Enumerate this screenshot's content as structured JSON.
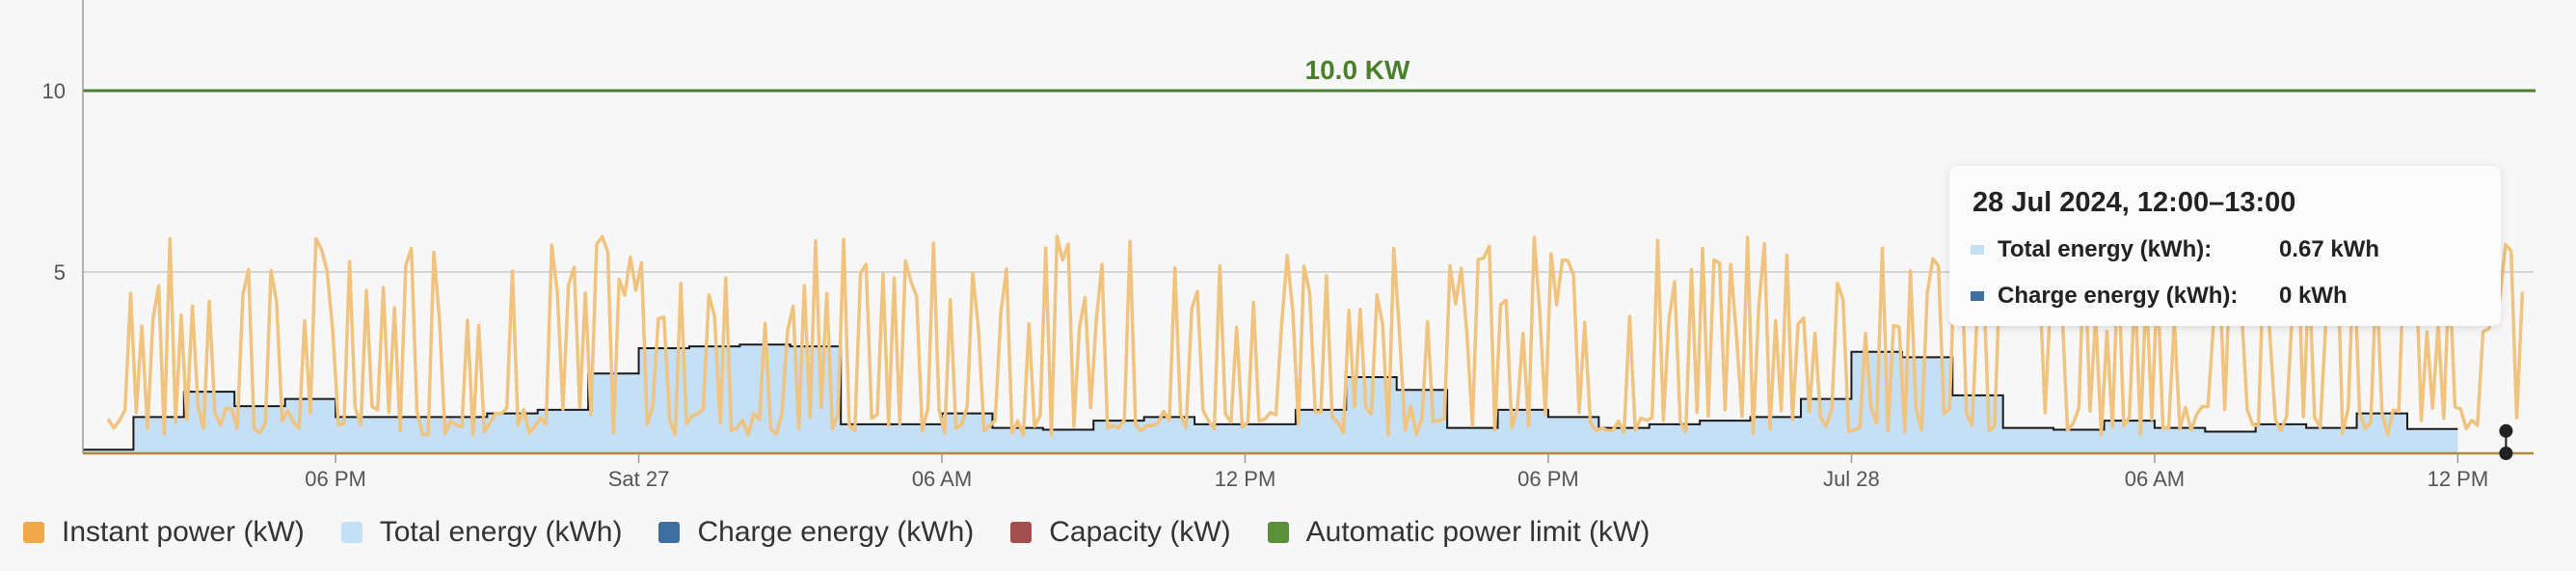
{
  "chart_data": {
    "type": "line",
    "y_axis": {
      "range": [
        0,
        12.5
      ],
      "ticks": [
        5,
        10
      ]
    },
    "x_axis": {
      "range": [
        "2024-07-26T13:00",
        "2024-07-28T13:30"
      ],
      "ticks": [
        {
          "t": "2024-07-26T18:00",
          "label": "06 PM"
        },
        {
          "t": "2024-07-27T00:00",
          "label": "Sat 27"
        },
        {
          "t": "2024-07-27T06:00",
          "label": "06 AM"
        },
        {
          "t": "2024-07-27T12:00",
          "label": "12 PM"
        },
        {
          "t": "2024-07-27T18:00",
          "label": "06 PM"
        },
        {
          "t": "2024-07-28T00:00",
          "label": "Jul 28"
        },
        {
          "t": "2024-07-28T06:00",
          "label": "06 AM"
        },
        {
          "t": "2024-07-28T12:00",
          "label": "12 PM"
        }
      ]
    },
    "grid": "horizontal",
    "power_limit": {
      "value": 10.0,
      "label": "10.0 KW",
      "color": "#4b7f2c"
    },
    "series": [
      {
        "name": "Total energy (kWh)",
        "type": "step-area",
        "color": "#c5dff5",
        "start": "2024-07-26T13:00",
        "step_hours": 1,
        "values": [
          0.1,
          1.0,
          1.7,
          1.3,
          1.5,
          1.0,
          1.0,
          1.0,
          1.1,
          1.2,
          2.2,
          2.9,
          2.95,
          3.0,
          2.95,
          0.8,
          0.8,
          1.1,
          0.7,
          0.65,
          0.9,
          1.0,
          0.8,
          0.8,
          1.2,
          2.1,
          1.75,
          0.7,
          1.2,
          1.0,
          0.7,
          0.8,
          0.9,
          1.0,
          1.5,
          2.8,
          2.65,
          1.6,
          0.7,
          0.65,
          0.9,
          0.7,
          0.6,
          0.8,
          0.7,
          1.1,
          0.67
        ]
      },
      {
        "name": "Instant power (kW)",
        "type": "line",
        "color": "#f0c37f",
        "start": "2024-07-26T13:30",
        "oscillation": {
          "low": 0.5,
          "high": 6.0
        },
        "note": "dense sawtooth between low and high throughout the range"
      },
      {
        "name": "Charge energy (kWh)",
        "color": "#3e6fa0",
        "values": [
          0
        ]
      },
      {
        "name": "Capacity (kW)",
        "color": "#a34e4e"
      },
      {
        "name": "Automatic power limit (kW)",
        "color": "#5b8f3a",
        "value": 10.0
      }
    ]
  },
  "tooltip": {
    "title": "28 Jul 2024, 12:00–13:00",
    "rows": [
      {
        "label": "Total energy (kWh):",
        "value": "0.67 kWh",
        "color": "#c5dff5"
      },
      {
        "label": "Charge energy (kWh):",
        "value": "0 kWh",
        "color": "#3e6fa0"
      }
    ]
  },
  "legend": [
    {
      "label": "Instant power (kW)",
      "color": "#f0a84a"
    },
    {
      "label": "Total energy (kWh)",
      "color": "#c5dff5"
    },
    {
      "label": "Charge energy (kWh)",
      "color": "#3e6fa0"
    },
    {
      "label": "Capacity (kW)",
      "color": "#a34e4e"
    },
    {
      "label": "Automatic power limit (kW)",
      "color": "#5b8f3a"
    }
  ]
}
